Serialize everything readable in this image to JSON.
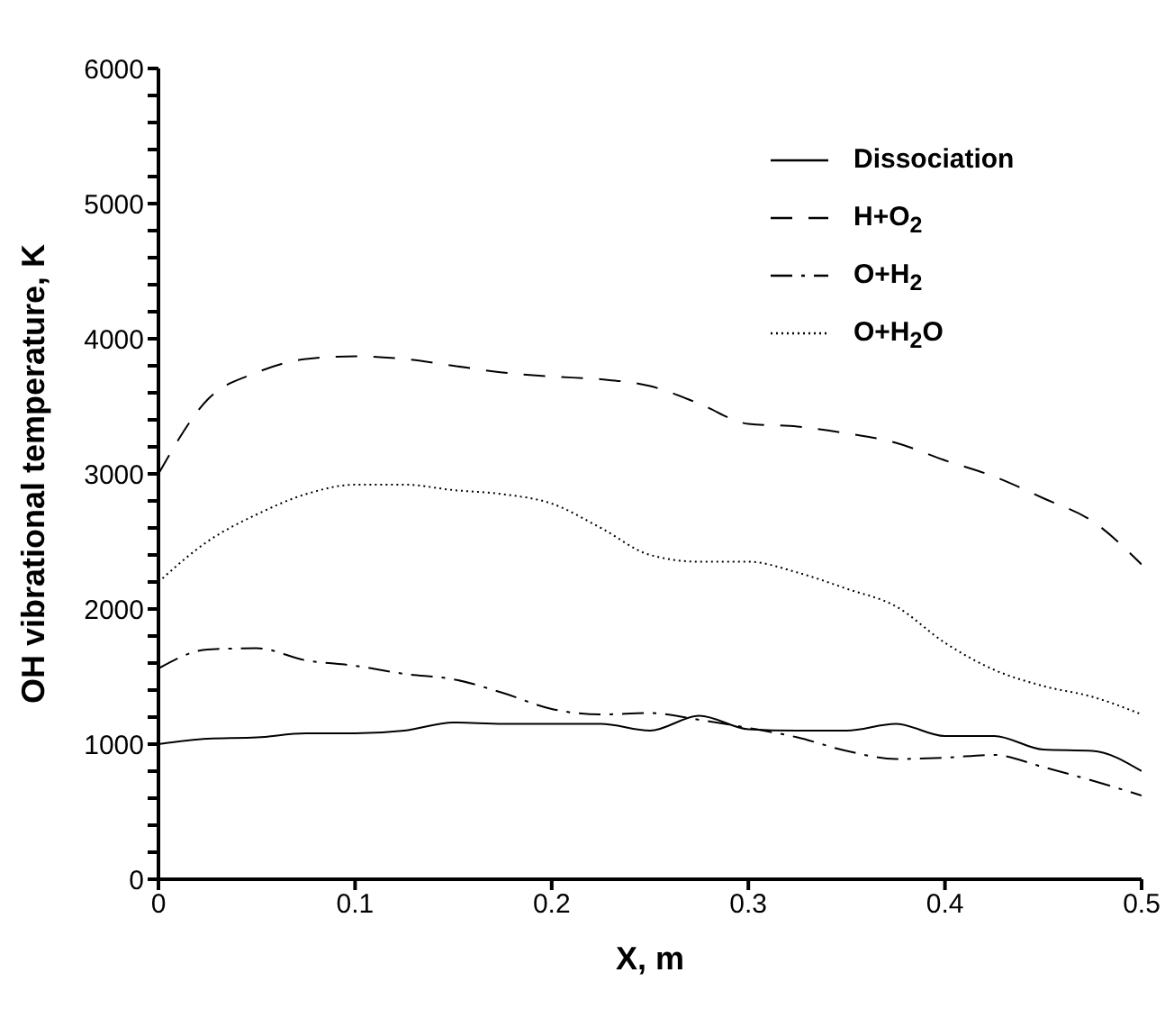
{
  "chart_data": {
    "type": "line",
    "xlabel": "X, m",
    "ylabel": "OH vibrational temperature, K",
    "x": [
      0,
      0.025,
      0.05,
      0.075,
      0.1,
      0.125,
      0.15,
      0.175,
      0.2,
      0.225,
      0.25,
      0.275,
      0.3,
      0.325,
      0.35,
      0.375,
      0.4,
      0.425,
      0.45,
      0.475,
      0.5
    ],
    "series": [
      {
        "name": "Dissociation",
        "color": "#000000",
        "line_style": "solid",
        "values": [
          1000,
          1040,
          1050,
          1080,
          1080,
          1100,
          1160,
          1150,
          1150,
          1150,
          1100,
          1210,
          1110,
          1100,
          1100,
          1150,
          1060,
          1060,
          960,
          950,
          800
        ]
      },
      {
        "name": "H+O$_{2}$",
        "color": "#000000",
        "line_style": "dashed",
        "values": [
          3000,
          3550,
          3750,
          3850,
          3870,
          3850,
          3800,
          3750,
          3720,
          3700,
          3650,
          3520,
          3370,
          3350,
          3300,
          3230,
          3100,
          2980,
          2820,
          2650,
          2330
        ]
      },
      {
        "name": "O+H$_{2}$",
        "color": "#000000",
        "line_style": "dashdot",
        "values": [
          1560,
          1700,
          1710,
          1620,
          1580,
          1520,
          1480,
          1380,
          1260,
          1220,
          1230,
          1180,
          1120,
          1050,
          950,
          890,
          900,
          920,
          830,
          730,
          620
        ]
      },
      {
        "name": "O+H$_{2}$O",
        "color": "#000000",
        "line_style": "dotted",
        "values": [
          2200,
          2500,
          2700,
          2850,
          2920,
          2920,
          2880,
          2850,
          2780,
          2600,
          2400,
          2350,
          2350,
          2270,
          2150,
          2020,
          1750,
          1550,
          1430,
          1350,
          1220
        ]
      }
    ],
    "xlim": [
      0,
      0.5
    ],
    "xticks": [
      0,
      0.1,
      0.2,
      0.3,
      0.4,
      0.5
    ],
    "ylim": [
      0,
      6000
    ],
    "yticks": [
      0,
      {
        "value": 200,
        "label": null
      },
      {
        "value": 400,
        "label": null
      },
      {
        "value": 600,
        "label": null
      },
      {
        "value": 800,
        "label": null
      },
      1000,
      {
        "value": 1200,
        "label": null
      },
      {
        "value": 1400,
        "label": null
      },
      {
        "value": 1600,
        "label": null
      },
      {
        "value": 1800,
        "label": null
      },
      2000,
      {
        "value": 2200,
        "label": null
      },
      {
        "value": 2400,
        "label": null
      },
      {
        "value": 2600,
        "label": null
      },
      {
        "value": 2800,
        "label": null
      },
      3000,
      {
        "value": 3200,
        "label": null
      },
      {
        "value": 3400,
        "label": null
      },
      {
        "value": 3600,
        "label": null
      },
      {
        "value": 3800,
        "label": null
      },
      4000,
      {
        "value": 4200,
        "label": null
      },
      {
        "value": 4400,
        "label": null
      },
      {
        "value": 4600,
        "label": null
      },
      {
        "value": 4800,
        "label": null
      },
      5000,
      {
        "value": 5200,
        "label": null
      },
      {
        "value": 5400,
        "label": null
      },
      {
        "value": 5600,
        "label": null
      },
      {
        "value": 5800,
        "label": null
      },
      6000
    ],
    "grid": false,
    "legend": "top right",
    "marker": "none"
  }
}
